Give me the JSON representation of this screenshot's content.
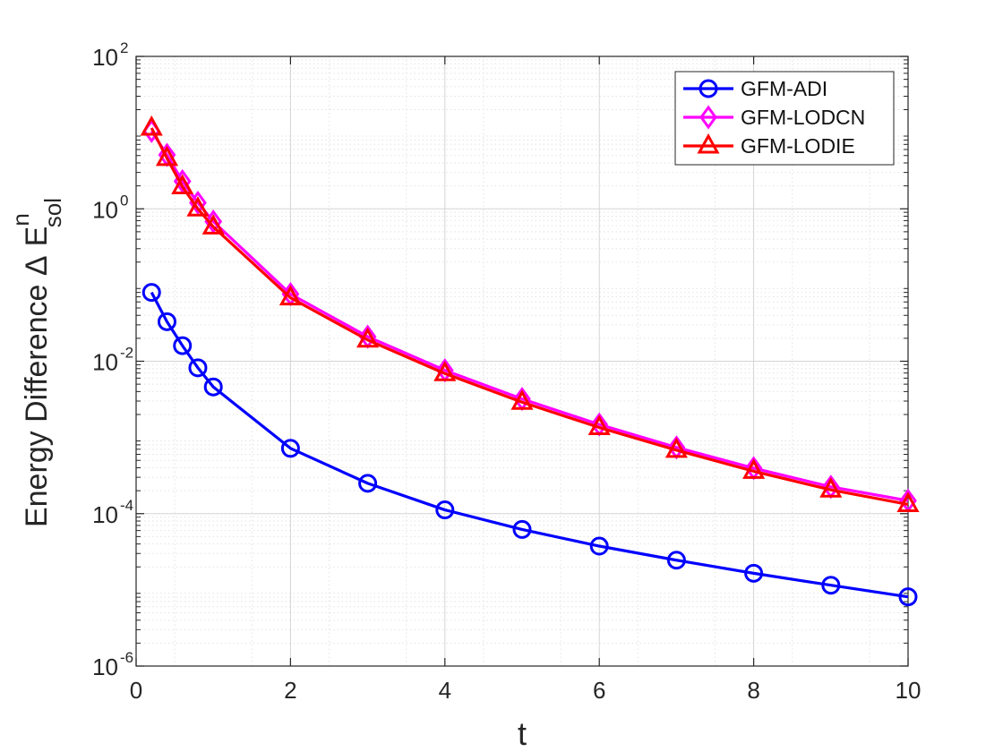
{
  "chart_data": {
    "type": "line",
    "yscale": "log",
    "xlabel": "t",
    "ylabel": {
      "prefix": "Energy Difference ",
      "delta": "Δ",
      "symbol": "E",
      "superscript": "n",
      "subscript": "sol"
    },
    "xlim": [
      0,
      10
    ],
    "ylim": [
      1e-06,
      100
    ],
    "xticks": [
      {
        "value": 0,
        "label": "0"
      },
      {
        "value": 2,
        "label": "2"
      },
      {
        "value": 4,
        "label": "4"
      },
      {
        "value": 6,
        "label": "6"
      },
      {
        "value": 8,
        "label": "8"
      },
      {
        "value": 10,
        "label": "10"
      }
    ],
    "yticks": [
      {
        "value": 1e-06,
        "base": "10",
        "exp": "-6"
      },
      {
        "value": 0.0001,
        "base": "10",
        "exp": "-4"
      },
      {
        "value": 0.01,
        "base": "10",
        "exp": "-2"
      },
      {
        "value": 1,
        "base": "10",
        "exp": "0"
      },
      {
        "value": 100,
        "base": "10",
        "exp": "2"
      }
    ],
    "grid": true,
    "legend_position": "top-right",
    "x": [
      0.2,
      0.4,
      0.6,
      0.8,
      1,
      2,
      3,
      4,
      5,
      6,
      7,
      8,
      9,
      10
    ],
    "series": [
      {
        "name": "GFM-ADI",
        "color": "#0000ff",
        "marker": "circle",
        "values": [
          0.08,
          0.033,
          0.016,
          0.0082,
          0.0046,
          0.00072,
          0.00025,
          0.000112,
          6.2e-05,
          3.75e-05,
          2.45e-05,
          1.65e-05,
          1.15e-05,
          8.1e-06
        ]
      },
      {
        "name": "GFM-LODCN",
        "color": "#ff00ff",
        "marker": "diamond",
        "values": [
          10.5,
          5.1,
          2.3,
          1.2,
          0.68,
          0.076,
          0.021,
          0.0076,
          0.0032,
          0.00148,
          0.00074,
          0.000395,
          0.000225,
          0.000148
        ]
      },
      {
        "name": "GFM-LODIE",
        "color": "#ff0000",
        "marker": "triangle",
        "values": [
          11.5,
          4.6,
          1.95,
          1.0,
          0.58,
          0.068,
          0.019,
          0.0069,
          0.0029,
          0.00135,
          0.00068,
          0.00036,
          0.000205,
          0.000132
        ]
      }
    ]
  }
}
